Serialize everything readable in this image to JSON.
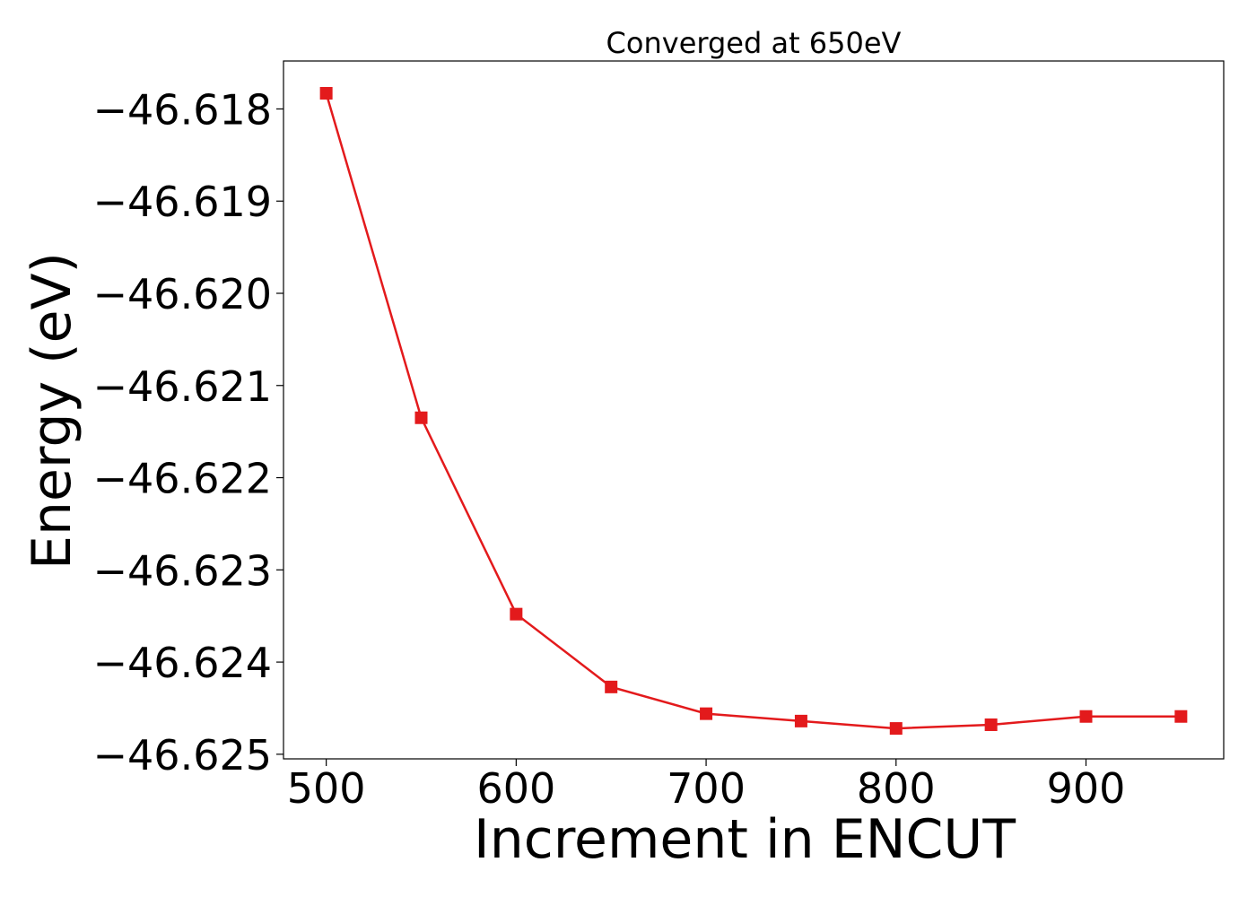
{
  "chart_data": {
    "type": "line",
    "title": "Converged at 650eV",
    "xlabel": "Increment in ENCUT",
    "ylabel": "Energy (eV)",
    "x": [
      500,
      550,
      600,
      650,
      700,
      750,
      800,
      850,
      900,
      950
    ],
    "series": [
      {
        "values": [
          -46.61783,
          -46.62135,
          -46.62348,
          -46.62427,
          -46.62456,
          -46.62464,
          -46.62472,
          -46.62468,
          -46.62459,
          -46.62459
        ],
        "color": "#e31a1c",
        "marker": "square"
      }
    ],
    "xlim": [
      477.5,
      972.5
    ],
    "ylim": [
      -46.62505,
      -46.61748
    ],
    "xticks": [
      500,
      600,
      700,
      800,
      900
    ],
    "xtick_labels": [
      "500",
      "600",
      "700",
      "800",
      "900"
    ],
    "yticks": [
      -46.618,
      -46.619,
      -46.62,
      -46.621,
      -46.622,
      -46.623,
      -46.624,
      -46.625
    ],
    "ytick_labels": [
      "−46.618",
      "−46.619",
      "−46.620",
      "−46.621",
      "−46.622",
      "−46.623",
      "−46.624",
      "−46.625"
    ],
    "grid": false,
    "legend": "none"
  }
}
